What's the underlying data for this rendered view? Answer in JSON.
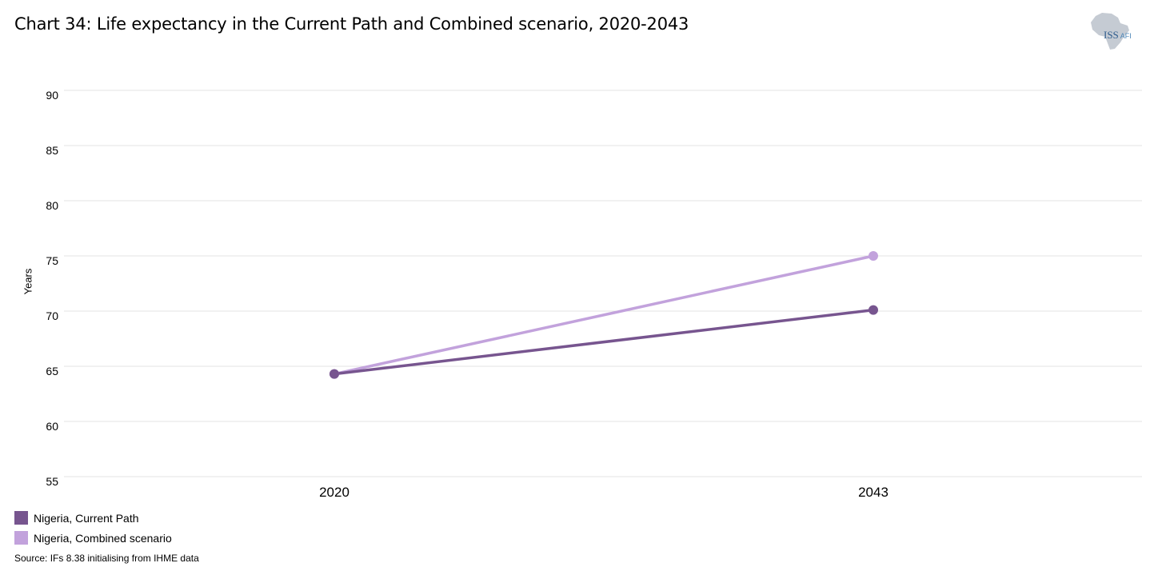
{
  "header": {
    "title": "Chart 34: Life expectancy in the Current Path and Combined scenario, 2020-2043"
  },
  "logo": {
    "text_main": "ISS",
    "text_sub": "AFI"
  },
  "chart_data": {
    "type": "line",
    "title": "Chart 34: Life expectancy in the Current Path and Combined scenario, 2020-2043",
    "xlabel": "",
    "ylabel": "Years",
    "categories": [
      "2020",
      "2043"
    ],
    "ylim": [
      55,
      90
    ],
    "yticks": [
      55,
      60,
      65,
      70,
      75,
      80,
      85,
      90
    ],
    "grid": true,
    "legend_position": "bottom-left",
    "series": [
      {
        "name": "Nigeria, Current Path",
        "values": [
          64.3,
          70.1
        ],
        "color": "#77558f"
      },
      {
        "name": "Nigeria, Combined scenario",
        "values": [
          64.3,
          75.0
        ],
        "color": "#c2a2dc"
      }
    ]
  },
  "source": "Source: IFs 8.38 initialising from IHME data"
}
